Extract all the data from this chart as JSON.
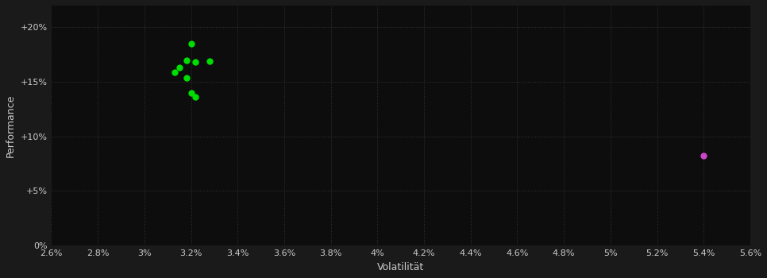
{
  "background_color": "#1a1a1a",
  "plot_bg_color": "#0d0d0d",
  "grid_color": "#3a3a3a",
  "grid_linestyle": ":",
  "xlabel": "Volatilität",
  "ylabel": "Performance",
  "xlabel_color": "#cccccc",
  "ylabel_color": "#cccccc",
  "tick_color": "#cccccc",
  "xlim": [
    0.026,
    0.056
  ],
  "ylim": [
    0.0,
    0.22
  ],
  "xticks": [
    0.026,
    0.028,
    0.03,
    0.032,
    0.034,
    0.036,
    0.038,
    0.04,
    0.042,
    0.044,
    0.046,
    0.048,
    0.05,
    0.052,
    0.054,
    0.056
  ],
  "yticks": [
    0.0,
    0.05,
    0.1,
    0.15,
    0.2
  ],
  "green_points": [
    [
      0.032,
      0.185
    ],
    [
      0.0318,
      0.17
    ],
    [
      0.0322,
      0.168
    ],
    [
      0.0328,
      0.169
    ],
    [
      0.0315,
      0.163
    ],
    [
      0.0313,
      0.159
    ],
    [
      0.0318,
      0.154
    ],
    [
      0.032,
      0.14
    ],
    [
      0.0322,
      0.136
    ]
  ],
  "green_color": "#00dd00",
  "purple_point": [
    0.054,
    0.082
  ],
  "purple_color": "#cc44cc",
  "marker_size": 6,
  "figsize": [
    9.66,
    3.5
  ],
  "dpi": 100
}
